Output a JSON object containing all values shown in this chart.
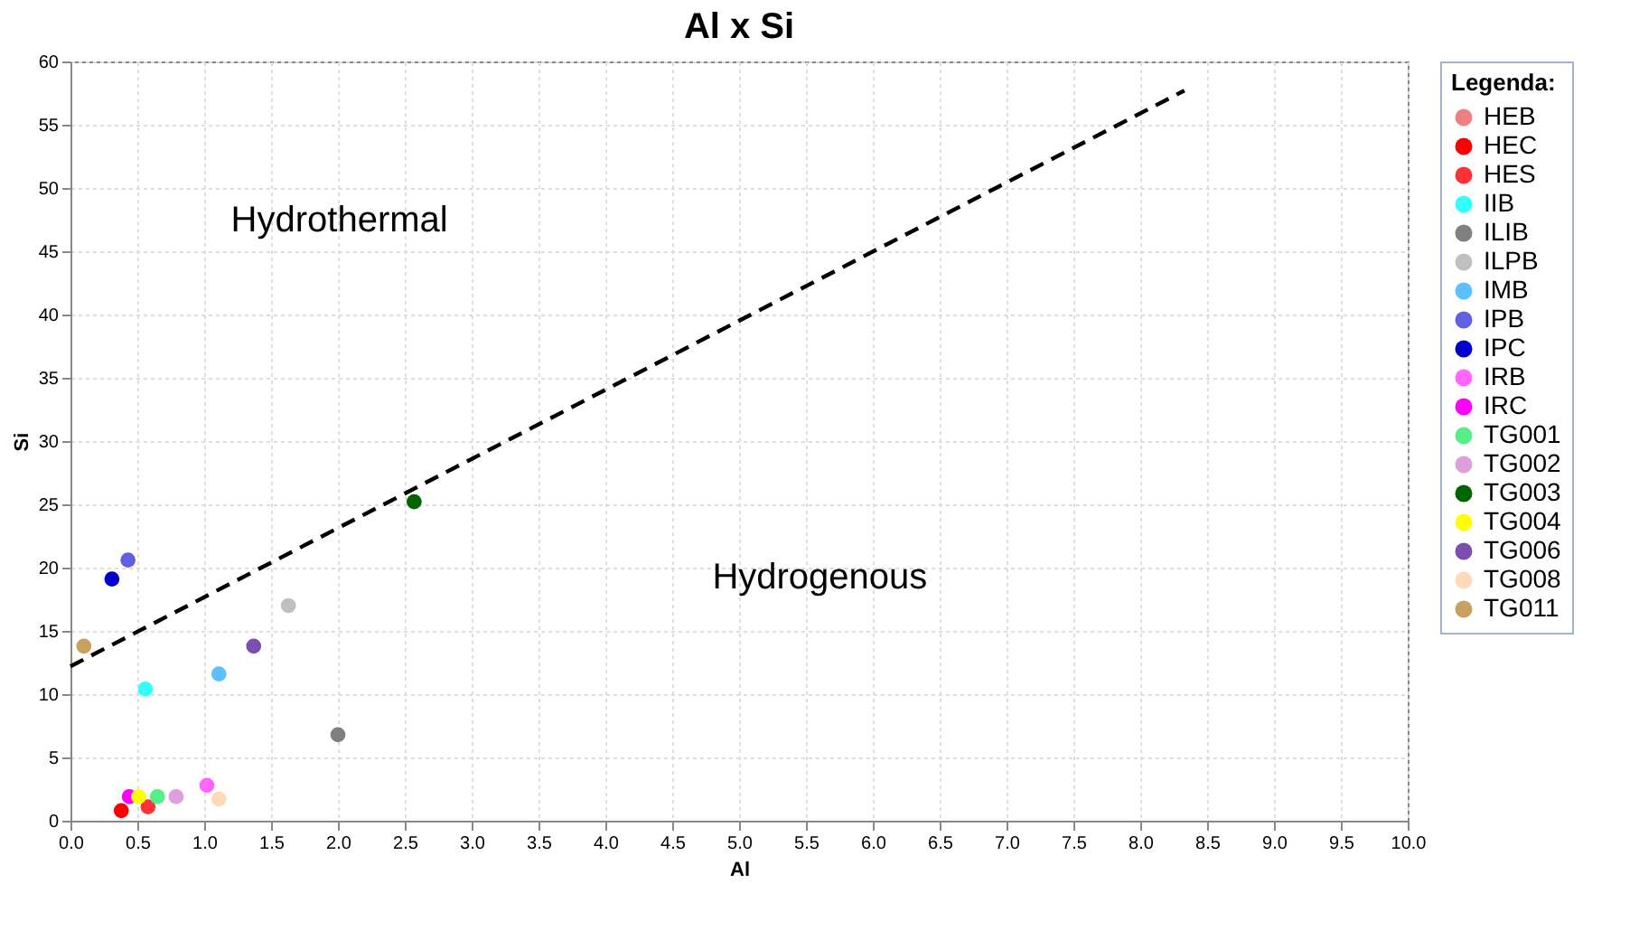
{
  "chart_data": {
    "type": "scatter",
    "title": "Al x Si",
    "xlabel": "Al",
    "ylabel": "Si",
    "legend_title": "Legenda:",
    "xlim": [
      0,
      10
    ],
    "ylim": [
      0,
      60
    ],
    "xticks": [
      {
        "value": 0,
        "label": "0.0"
      },
      {
        "value": 0.5,
        "label": "0.5"
      },
      {
        "value": 1,
        "label": "1.0"
      },
      {
        "value": 1.5,
        "label": "1.5"
      },
      {
        "value": 2,
        "label": "2.0"
      },
      {
        "value": 2.5,
        "label": "2.5"
      },
      {
        "value": 3,
        "label": "3.0"
      },
      {
        "value": 3.5,
        "label": "3.5"
      },
      {
        "value": 4,
        "label": "4.0"
      },
      {
        "value": 4.5,
        "label": "4.5"
      },
      {
        "value": 5,
        "label": "5.0"
      },
      {
        "value": 5.5,
        "label": "5.5"
      },
      {
        "value": 6,
        "label": "6.0"
      },
      {
        "value": 6.5,
        "label": "6.5"
      },
      {
        "value": 7,
        "label": "7.0"
      },
      {
        "value": 7.5,
        "label": "7.5"
      },
      {
        "value": 8,
        "label": "8.0"
      },
      {
        "value": 8.5,
        "label": "8.5"
      },
      {
        "value": 9,
        "label": "9.0"
      },
      {
        "value": 9.5,
        "label": "9.5"
      },
      {
        "value": 10,
        "label": "10.0"
      }
    ],
    "yticks": [
      0,
      5,
      10,
      15,
      20,
      25,
      30,
      35,
      40,
      45,
      50,
      55,
      60
    ],
    "grid": true,
    "legend": "right",
    "marker": "circle",
    "annotations": [
      "Hydrothermal",
      "Hydrogenous"
    ],
    "series": [
      {
        "name": "HEB",
        "color": "#f08080",
        "x": [
          null
        ],
        "values": [
          null
        ]
      },
      {
        "name": "HEC",
        "color": "#ff0000",
        "x": [
          0.38
        ],
        "values": [
          0.8
        ]
      },
      {
        "name": "HES",
        "color": "#ff3333",
        "x": [
          0.58
        ],
        "values": [
          1.1
        ]
      },
      {
        "name": "IIB",
        "color": "#33ffff",
        "x": [
          0.56
        ],
        "values": [
          10.4
        ]
      },
      {
        "name": "ILIB",
        "color": "#808080",
        "x": [
          2.0
        ],
        "values": [
          6.8
        ]
      },
      {
        "name": "ILPB",
        "color": "#c0c0c0",
        "x": [
          1.63
        ],
        "values": [
          17.0
        ]
      },
      {
        "name": "IMB",
        "color": "#5bc0ff",
        "x": [
          1.11
        ],
        "values": [
          11.6
        ]
      },
      {
        "name": "IPB",
        "color": "#6060e0",
        "x": [
          0.43
        ],
        "values": [
          20.6
        ]
      },
      {
        "name": "IPC",
        "color": "#0000cc",
        "x": [
          0.31
        ],
        "values": [
          19.1
        ]
      },
      {
        "name": "IRB",
        "color": "#ff66ff",
        "x": [
          1.02
        ],
        "values": [
          2.8
        ]
      },
      {
        "name": "IRC",
        "color": "#ff00ff",
        "x": [
          0.44
        ],
        "values": [
          1.9
        ]
      },
      {
        "name": "TG001",
        "color": "#55ee88",
        "x": [
          0.65
        ],
        "values": [
          1.9
        ]
      },
      {
        "name": "TG002",
        "color": "#dda0dd",
        "x": [
          0.79
        ],
        "values": [
          1.9
        ]
      },
      {
        "name": "TG003",
        "color": "#006400",
        "x": [
          2.57
        ],
        "values": [
          25.2
        ]
      },
      {
        "name": "TG004",
        "color": "#ffff00",
        "x": [
          0.51
        ],
        "values": [
          1.9
        ]
      },
      {
        "name": "TG006",
        "color": "#7a4fb0",
        "x": [
          1.37
        ],
        "values": [
          13.8
        ]
      },
      {
        "name": "TG008",
        "color": "#ffdab9",
        "x": [
          1.11
        ],
        "values": [
          1.7
        ]
      },
      {
        "name": "TG011",
        "color": "#c8a060",
        "x": [
          0.1
        ],
        "values": [
          13.8
        ]
      },
      {
        "type": "line",
        "color": "#000000",
        "line_style": "dashed",
        "marker": "none",
        "x": [
          0,
          8.33
        ],
        "values": [
          12.2,
          57.7
        ]
      }
    ]
  }
}
